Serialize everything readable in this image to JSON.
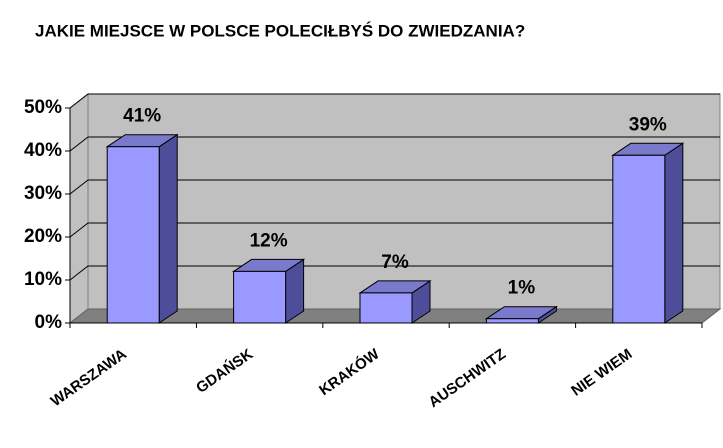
{
  "chart_data": {
    "type": "bar3d",
    "title": "JAKIE MIEJSCE W POLSCE POLECIŁBYŚ DO ZWIEDZANIA?",
    "categories": [
      "WARSZAWA",
      "GDAŃSK",
      "KRAKÓW",
      "AUSCHWITZ",
      "NIE WIEM"
    ],
    "values": [
      41,
      12,
      7,
      1,
      39
    ],
    "value_labels": [
      "41%",
      "12%",
      "7%",
      "1%",
      "39%"
    ],
    "color": "#9999ff",
    "ylim": [
      0,
      50
    ],
    "yticks": [
      {
        "value": 0,
        "label": "0%"
      },
      {
        "value": 10,
        "label": "10%"
      },
      {
        "value": 20,
        "label": "20%"
      },
      {
        "value": 30,
        "label": "30%"
      },
      {
        "value": 40,
        "label": "40%"
      },
      {
        "value": 50,
        "label": "50%"
      }
    ],
    "grid": true
  }
}
